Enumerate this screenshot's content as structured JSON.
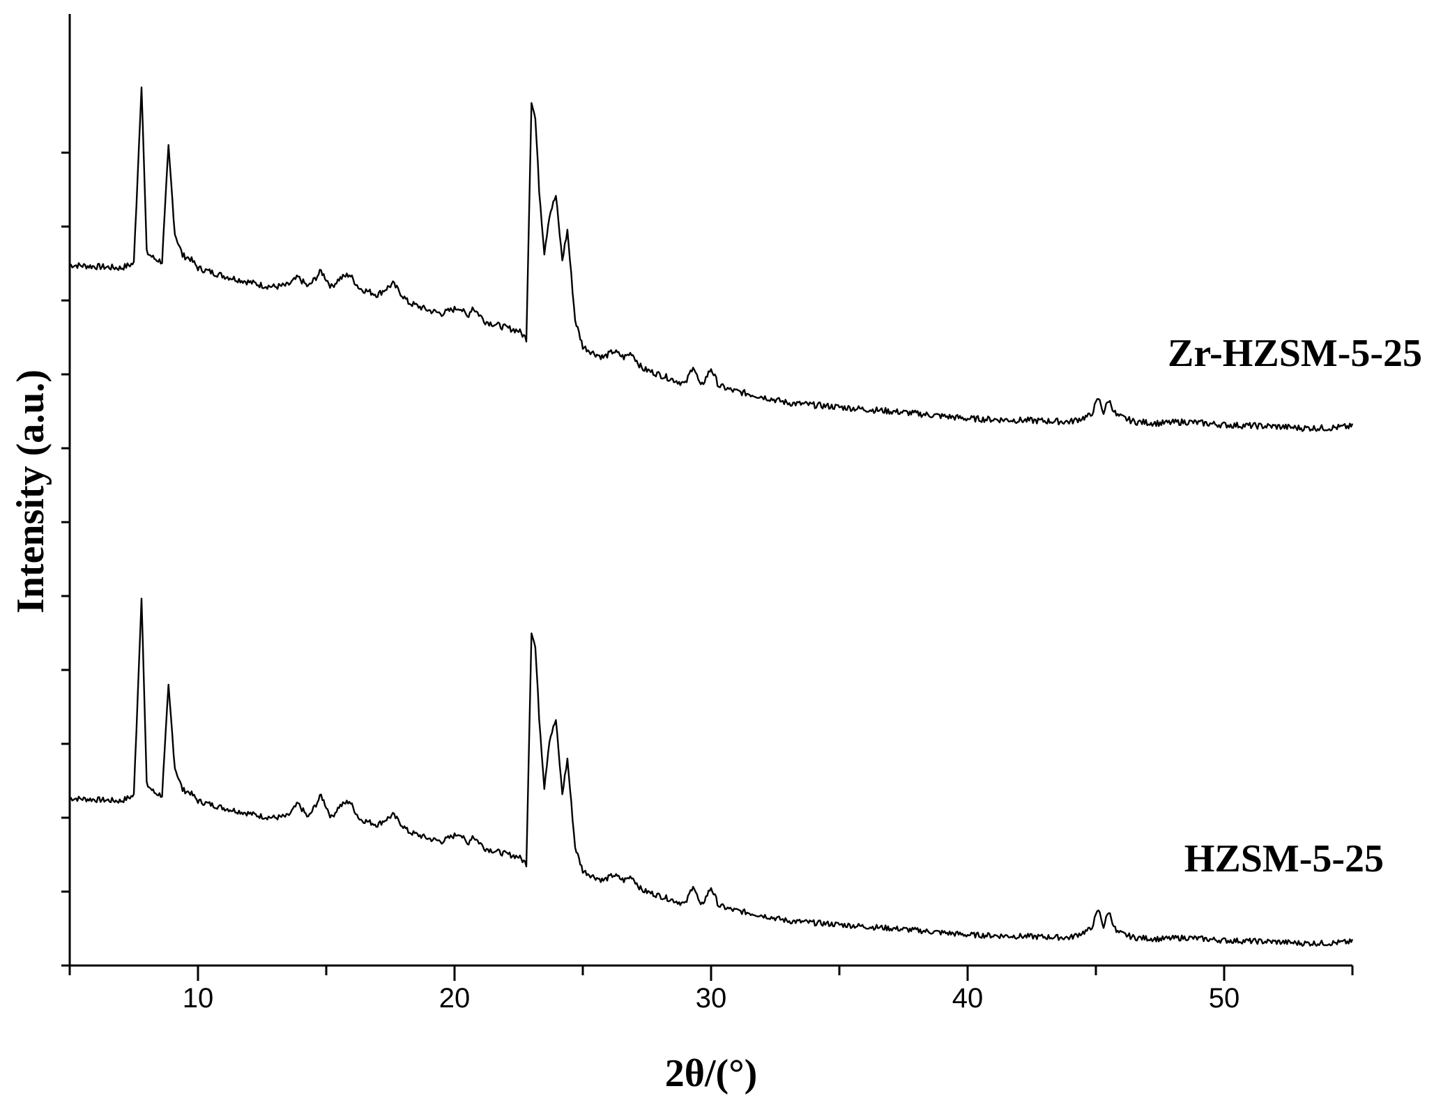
{
  "chart_data": {
    "type": "line",
    "xlabel": "2θ/(°)",
    "ylabel": "Intensity (a.u.)",
    "xlim": [
      5,
      55
    ],
    "xticks": [
      10,
      20,
      30,
      40,
      50
    ],
    "yticks_labeled": false,
    "grid": false,
    "legend": "none (series labeled directly on plot)",
    "series": [
      {
        "name": "Zr-HZSM-5-25",
        "x": [
          5.0,
          6.0,
          7.0,
          7.5,
          7.8,
          8.0,
          8.3,
          8.6,
          8.85,
          9.1,
          9.4,
          9.7,
          10.0,
          11.0,
          12.0,
          12.5,
          13.0,
          13.5,
          13.9,
          14.3,
          14.8,
          15.2,
          15.5,
          15.9,
          16.3,
          17.0,
          17.6,
          18.2,
          19.0,
          19.5,
          20.2,
          20.5,
          20.7,
          21.2,
          22.0,
          22.5,
          22.8,
          23.0,
          23.15,
          23.3,
          23.5,
          23.7,
          23.95,
          24.2,
          24.4,
          24.7,
          25.0,
          25.4,
          25.8,
          26.2,
          26.6,
          26.9,
          27.3,
          28.0,
          29.0,
          29.3,
          29.6,
          30.0,
          30.3,
          30.8,
          32.0,
          33.0,
          34.5,
          36.0,
          37.5,
          40.0,
          44.0,
          44.8,
          45.1,
          45.3,
          45.5,
          45.8,
          46.5,
          47.5,
          48.5,
          50.0,
          52.0,
          53.0,
          54.0,
          55.0
        ],
        "y": [
          100,
          99,
          98,
          101,
          215,
          108,
          104,
          102,
          175,
          120,
          106,
          104,
          98,
          93,
          89,
          87,
          86,
          87,
          92,
          86,
          96,
          86,
          91,
          94,
          85,
          81,
          88,
          76,
          71,
          69,
          73,
          67,
          73,
          64,
          60,
          58,
          53,
          205,
          193,
          148,
          108,
          132,
          144,
          103,
          122,
          65,
          48,
          44,
          41,
          45,
          41,
          44,
          34,
          30,
          24,
          36,
          22,
          34,
          23,
          20,
          16,
          12,
          10,
          8,
          6,
          2,
          0,
          4,
          15,
          6,
          14,
          4,
          0,
          -1,
          0,
          -2,
          -3,
          -4,
          -4,
          -3
        ]
      },
      {
        "name": "HZSM-5-25",
        "x": [
          5.0,
          6.0,
          7.0,
          7.5,
          7.8,
          8.0,
          8.3,
          8.6,
          8.85,
          9.1,
          9.4,
          9.7,
          10.0,
          11.0,
          12.0,
          12.5,
          13.0,
          13.5,
          13.9,
          14.3,
          14.8,
          15.2,
          15.5,
          15.9,
          16.3,
          17.0,
          17.6,
          18.2,
          19.0,
          19.5,
          20.2,
          20.5,
          20.7,
          21.2,
          22.0,
          22.5,
          22.8,
          23.0,
          23.15,
          23.3,
          23.5,
          23.7,
          23.95,
          24.2,
          24.4,
          24.7,
          25.0,
          25.4,
          25.8,
          26.2,
          26.6,
          26.9,
          27.3,
          28.0,
          29.0,
          29.3,
          29.6,
          30.0,
          30.3,
          30.8,
          32.0,
          33.0,
          34.5,
          36.0,
          37.5,
          40.0,
          44.0,
          44.8,
          45.1,
          45.3,
          45.5,
          45.8,
          46.5,
          47.5,
          48.5,
          50.0,
          52.0,
          53.0,
          54.0,
          55.0
        ],
        "y": [
          100,
          99,
          98,
          102,
          245,
          110,
          104,
          102,
          180,
          122,
          106,
          104,
          98,
          93,
          89,
          87,
          86,
          87,
          96,
          86,
          102,
          86,
          94,
          98,
          85,
          81,
          88,
          76,
          71,
          69,
          75,
          67,
          73,
          64,
          60,
          58,
          53,
          220,
          208,
          158,
          108,
          142,
          156,
          103,
          128,
          65,
          48,
          44,
          41,
          45,
          41,
          44,
          34,
          30,
          24,
          38,
          22,
          36,
          23,
          20,
          16,
          12,
          10,
          8,
          6,
          2,
          0,
          6,
          20,
          8,
          19,
          4,
          0,
          -1,
          0,
          -2,
          -3,
          -4,
          -4,
          -3
        ]
      }
    ]
  }
}
